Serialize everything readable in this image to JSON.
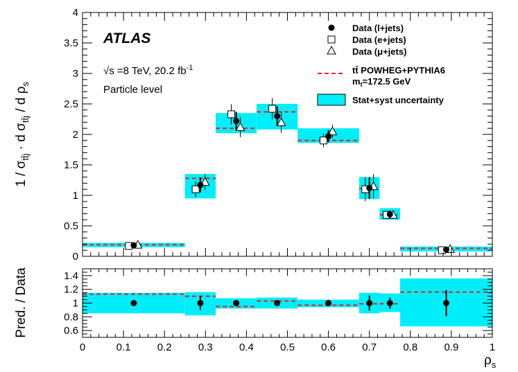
{
  "chart_data": [
    {
      "type": "scatter",
      "panel": "main",
      "experiment_label": "ATLAS",
      "energy_label": "√s =8 TeV, 20.2  fb⁻¹",
      "level_label": "Particle level",
      "ylabel": "1 / σ_tt̄j · d σ_tt̄j / d ρs",
      "xlim": [
        0,
        1
      ],
      "ylim": [
        0,
        4
      ],
      "y_ticks": [
        "0",
        "0.5",
        "1",
        "1.5",
        "2",
        "2.5",
        "3",
        "3.5",
        "4"
      ],
      "bins": [
        {
          "lo": 0.0,
          "hi": 0.25,
          "prediction": 0.19,
          "unc_lo": 0.15,
          "unc_hi": 0.22,
          "data_ljets": 0.18,
          "err_ljets": 0.02,
          "data_ejets": 0.17,
          "data_mujets": 0.19
        },
        {
          "lo": 0.25,
          "hi": 0.325,
          "prediction": 1.28,
          "unc_lo": 0.95,
          "unc_hi": 1.35,
          "data_ljets": 1.17,
          "err_ljets": 0.12,
          "data_ejets": 1.1,
          "data_mujets": 1.22
        },
        {
          "lo": 0.325,
          "hi": 0.425,
          "prediction": 2.1,
          "unc_lo": 2.02,
          "unc_hi": 2.35,
          "data_ljets": 2.22,
          "err_ljets": 0.15,
          "data_ejets": 2.33,
          "data_mujets": 2.12
        },
        {
          "lo": 0.425,
          "hi": 0.525,
          "prediction": 2.37,
          "unc_lo": 2.08,
          "unc_hi": 2.5,
          "data_ljets": 2.3,
          "err_ljets": 0.16,
          "data_ejets": 2.42,
          "data_mujets": 2.2
        },
        {
          "lo": 0.525,
          "hi": 0.675,
          "prediction": 1.9,
          "unc_lo": 1.86,
          "unc_hi": 2.1,
          "data_ljets": 1.97,
          "err_ljets": 0.1,
          "data_ejets": 1.9,
          "data_mujets": 2.05
        },
        {
          "lo": 0.675,
          "hi": 0.725,
          "prediction": 1.11,
          "unc_lo": 0.94,
          "unc_hi": 1.3,
          "data_ljets": 1.12,
          "err_ljets": 0.18,
          "data_ejets": 1.1,
          "data_mujets": 1.15
        },
        {
          "lo": 0.725,
          "hi": 0.775,
          "prediction": 0.68,
          "unc_lo": 0.6,
          "unc_hi": 0.79,
          "data_ljets": 0.69,
          "err_ljets": 0.06,
          "data_ejets": 0.68,
          "data_mujets": 0.68
        },
        {
          "lo": 0.775,
          "hi": 1.0,
          "prediction": 0.13,
          "unc_lo": 0.08,
          "unc_hi": 0.16,
          "data_ljets": 0.11,
          "err_ljets": 0.02,
          "data_ejets": 0.1,
          "data_mujets": 0.12
        }
      ],
      "x_ljets": [
        0.125,
        0.2875,
        0.375,
        0.475,
        0.6,
        0.7,
        0.75,
        0.8875
      ],
      "x_ejets": [
        0.113,
        0.276,
        0.363,
        0.463,
        0.588,
        0.69,
        0.742,
        0.877
      ],
      "x_mujets": [
        0.135,
        0.299,
        0.385,
        0.485,
        0.61,
        0.71,
        0.758,
        0.897
      ],
      "legend": {
        "placement": "top-right",
        "ljets": "Data (l+jets)",
        "ejets": "Data (e+jets)",
        "mujets": "Data (μ+jets)",
        "prediction_line1": "tt̄ POWHEG+PYTHIA6",
        "prediction_line2": "mt=172.5 GeV",
        "uncertainty": "Stat+syst uncertainty"
      },
      "colors": {
        "prediction": "#e8202a",
        "uncertainty": "#00eefa",
        "data": "#000000"
      }
    },
    {
      "type": "scatter",
      "panel": "ratio",
      "ylabel": "Pred. / Data",
      "xlabel": "ρs",
      "xlim": [
        0,
        1
      ],
      "ylim": [
        0.5,
        1.5
      ],
      "y_ticks": [
        "0.6",
        "0.8",
        "1",
        "1.2",
        "1.4"
      ],
      "x_ticks": [
        "0",
        "0.1",
        "0.2",
        "0.3",
        "0.4",
        "0.5",
        "0.6",
        "0.7",
        "0.8",
        "0.9",
        "1"
      ],
      "bins": [
        {
          "lo": 0.0,
          "hi": 0.25,
          "ratio": 1.13,
          "unc_lo": 0.85,
          "unc_hi": 1.15
        },
        {
          "lo": 0.25,
          "hi": 0.325,
          "ratio": 1.1,
          "unc_lo": 0.82,
          "unc_hi": 1.16
        },
        {
          "lo": 0.325,
          "hi": 0.425,
          "ratio": 0.95,
          "unc_lo": 0.92,
          "unc_hi": 1.07
        },
        {
          "lo": 0.425,
          "hi": 0.525,
          "ratio": 1.03,
          "unc_lo": 0.92,
          "unc_hi": 1.08
        },
        {
          "lo": 0.525,
          "hi": 0.675,
          "ratio": 0.97,
          "unc_lo": 0.94,
          "unc_hi": 1.05
        },
        {
          "lo": 0.675,
          "hi": 0.725,
          "ratio": 0.99,
          "unc_lo": 0.85,
          "unc_hi": 1.15
        },
        {
          "lo": 0.725,
          "hi": 0.775,
          "ratio": 0.99,
          "unc_lo": 0.87,
          "unc_hi": 1.14
        },
        {
          "lo": 0.775,
          "hi": 1.0,
          "ratio": 1.16,
          "unc_lo": 0.66,
          "unc_hi": 1.36
        }
      ],
      "points": [
        {
          "x": 0.125,
          "y": 1.0,
          "err": 0.02
        },
        {
          "x": 0.2875,
          "y": 1.0,
          "err": 0.1
        },
        {
          "x": 0.375,
          "y": 1.0,
          "err": 0.03
        },
        {
          "x": 0.475,
          "y": 1.0,
          "err": 0.04
        },
        {
          "x": 0.6,
          "y": 1.0,
          "err": 0.03
        },
        {
          "x": 0.7,
          "y": 1.0,
          "err": 0.11
        },
        {
          "x": 0.75,
          "y": 1.0,
          "err": 0.08
        },
        {
          "x": 0.8875,
          "y": 1.0,
          "err": 0.19
        }
      ]
    }
  ]
}
